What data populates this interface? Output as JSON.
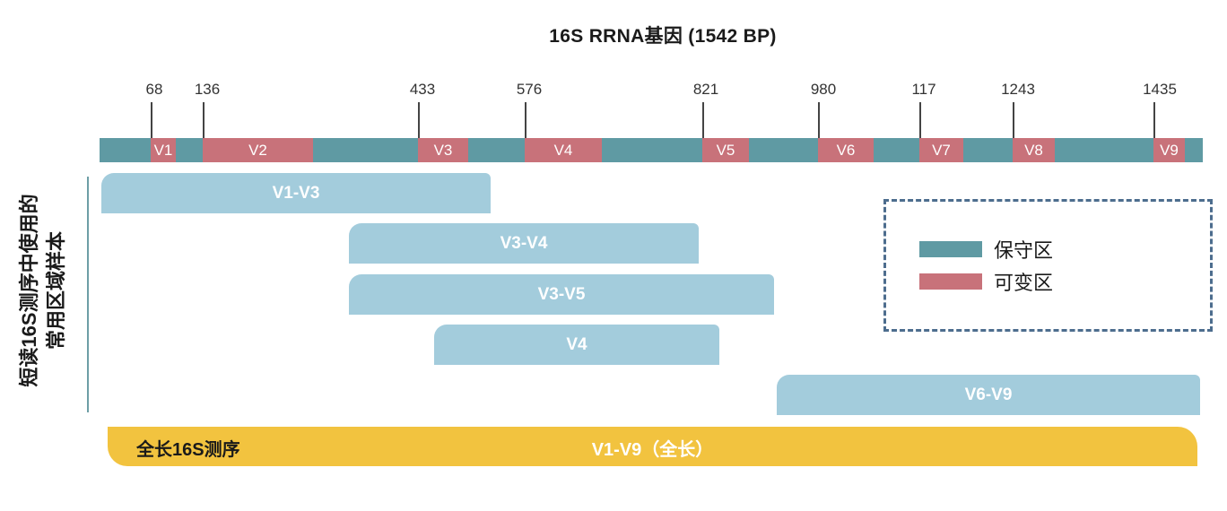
{
  "title": "16S RRNA基因 (1542 BP)",
  "ticks": [
    "68",
    "136",
    "433",
    "576",
    "821",
    "980",
    "117",
    "1243",
    "1435"
  ],
  "regions": [
    "V1",
    "V2",
    "V3",
    "V4",
    "V5",
    "V6",
    "V7",
    "V8",
    "V9"
  ],
  "y_axis_label_line1": "短读16S测序中使用的",
  "y_axis_label_line2": "常用区域样本",
  "segments": [
    "V1-V3",
    "V3-V4",
    "V3-V5",
    "V4",
    "V6-V9"
  ],
  "full_length": {
    "left_label": "全长16S测序",
    "center_label": "V1-V9（全长）"
  },
  "legend": {
    "conserved": "保守区",
    "variable": "可变区"
  },
  "colors": {
    "conserved": "#5f9aa3",
    "variable": "#c8727a",
    "segment": "#a3ccdc",
    "full_length": "#f2c33f",
    "legend_border": "#4d6d8e"
  }
}
